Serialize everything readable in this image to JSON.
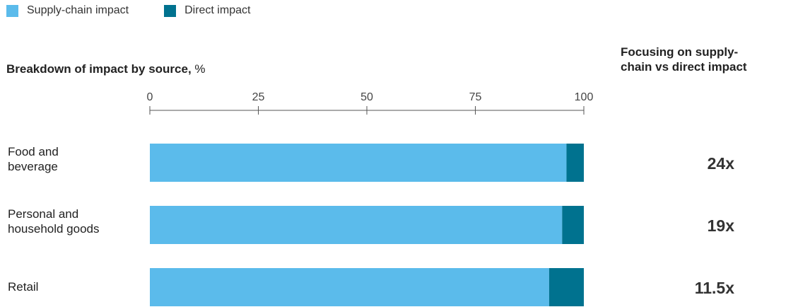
{
  "legend": [
    {
      "label": "Supply-chain impact",
      "color": "#5BBBEB"
    },
    {
      "label": "Direct impact",
      "color": "#00728F"
    }
  ],
  "title": {
    "bold": "Breakdown of impact by source,",
    "unit": " %"
  },
  "right_title": {
    "line1": "Focusing on supply-",
    "line2": "chain vs direct impact"
  },
  "chart_data": {
    "type": "bar",
    "orientation": "horizontal",
    "stacked": true,
    "title": "Breakdown of impact by source, %",
    "xlim": [
      0,
      100
    ],
    "ticks": [
      0,
      25,
      50,
      75,
      100
    ],
    "categories": [
      "Food and beverage",
      "Personal and household goods",
      "Retail"
    ],
    "series": [
      {
        "name": "Supply-chain impact",
        "color": "#5BBBEB",
        "values": [
          96,
          95,
          92
        ]
      },
      {
        "name": "Direct impact",
        "color": "#00728F",
        "values": [
          4,
          5,
          8
        ]
      }
    ],
    "grid": false,
    "legend_position": "top-left"
  },
  "rows": [
    {
      "label_lines": [
        "Food and",
        "beverage"
      ],
      "ratio": "24x"
    },
    {
      "label_lines": [
        "Personal and",
        "household goods"
      ],
      "ratio": "19x"
    },
    {
      "label_lines": [
        "Retail"
      ],
      "ratio": "11.5x"
    }
  ]
}
